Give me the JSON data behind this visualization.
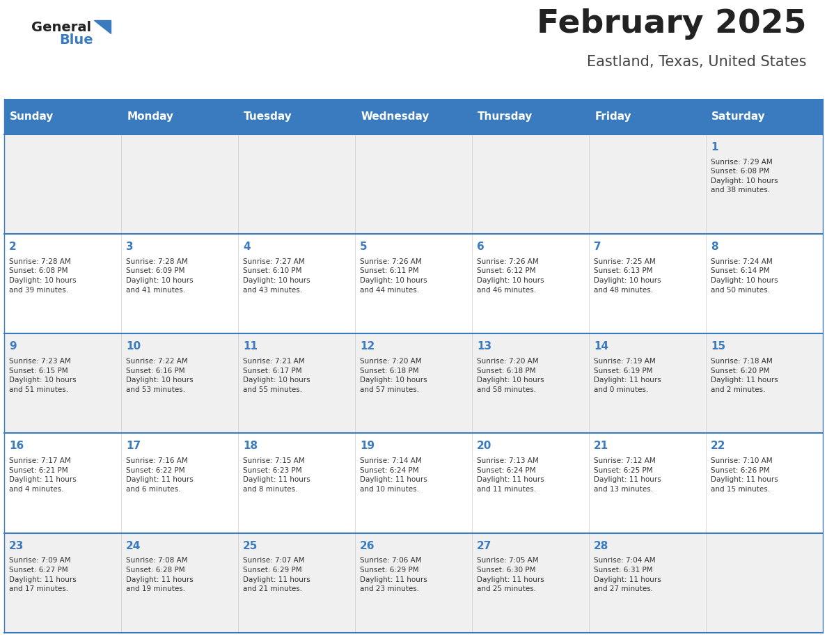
{
  "title": "February 2025",
  "subtitle": "Eastland, Texas, United States",
  "header_bg": "#3a7abf",
  "header_text_color": "#ffffff",
  "day_names": [
    "Sunday",
    "Monday",
    "Tuesday",
    "Wednesday",
    "Thursday",
    "Friday",
    "Saturday"
  ],
  "row1_bg": "#f0f0f0",
  "row2_bg": "#ffffff",
  "divider_color": "#3a7abf",
  "date_color": "#3a7abf",
  "info_color": "#333333",
  "title_color": "#222222",
  "subtitle_color": "#444444",
  "logo_general_color": "#222222",
  "logo_blue_color": "#3a7abf",
  "calendar": [
    [
      {
        "day": null,
        "info": ""
      },
      {
        "day": null,
        "info": ""
      },
      {
        "day": null,
        "info": ""
      },
      {
        "day": null,
        "info": ""
      },
      {
        "day": null,
        "info": ""
      },
      {
        "day": null,
        "info": ""
      },
      {
        "day": 1,
        "info": "Sunrise: 7:29 AM\nSunset: 6:08 PM\nDaylight: 10 hours\nand 38 minutes."
      }
    ],
    [
      {
        "day": 2,
        "info": "Sunrise: 7:28 AM\nSunset: 6:08 PM\nDaylight: 10 hours\nand 39 minutes."
      },
      {
        "day": 3,
        "info": "Sunrise: 7:28 AM\nSunset: 6:09 PM\nDaylight: 10 hours\nand 41 minutes."
      },
      {
        "day": 4,
        "info": "Sunrise: 7:27 AM\nSunset: 6:10 PM\nDaylight: 10 hours\nand 43 minutes."
      },
      {
        "day": 5,
        "info": "Sunrise: 7:26 AM\nSunset: 6:11 PM\nDaylight: 10 hours\nand 44 minutes."
      },
      {
        "day": 6,
        "info": "Sunrise: 7:26 AM\nSunset: 6:12 PM\nDaylight: 10 hours\nand 46 minutes."
      },
      {
        "day": 7,
        "info": "Sunrise: 7:25 AM\nSunset: 6:13 PM\nDaylight: 10 hours\nand 48 minutes."
      },
      {
        "day": 8,
        "info": "Sunrise: 7:24 AM\nSunset: 6:14 PM\nDaylight: 10 hours\nand 50 minutes."
      }
    ],
    [
      {
        "day": 9,
        "info": "Sunrise: 7:23 AM\nSunset: 6:15 PM\nDaylight: 10 hours\nand 51 minutes."
      },
      {
        "day": 10,
        "info": "Sunrise: 7:22 AM\nSunset: 6:16 PM\nDaylight: 10 hours\nand 53 minutes."
      },
      {
        "day": 11,
        "info": "Sunrise: 7:21 AM\nSunset: 6:17 PM\nDaylight: 10 hours\nand 55 minutes."
      },
      {
        "day": 12,
        "info": "Sunrise: 7:20 AM\nSunset: 6:18 PM\nDaylight: 10 hours\nand 57 minutes."
      },
      {
        "day": 13,
        "info": "Sunrise: 7:20 AM\nSunset: 6:18 PM\nDaylight: 10 hours\nand 58 minutes."
      },
      {
        "day": 14,
        "info": "Sunrise: 7:19 AM\nSunset: 6:19 PM\nDaylight: 11 hours\nand 0 minutes."
      },
      {
        "day": 15,
        "info": "Sunrise: 7:18 AM\nSunset: 6:20 PM\nDaylight: 11 hours\nand 2 minutes."
      }
    ],
    [
      {
        "day": 16,
        "info": "Sunrise: 7:17 AM\nSunset: 6:21 PM\nDaylight: 11 hours\nand 4 minutes."
      },
      {
        "day": 17,
        "info": "Sunrise: 7:16 AM\nSunset: 6:22 PM\nDaylight: 11 hours\nand 6 minutes."
      },
      {
        "day": 18,
        "info": "Sunrise: 7:15 AM\nSunset: 6:23 PM\nDaylight: 11 hours\nand 8 minutes."
      },
      {
        "day": 19,
        "info": "Sunrise: 7:14 AM\nSunset: 6:24 PM\nDaylight: 11 hours\nand 10 minutes."
      },
      {
        "day": 20,
        "info": "Sunrise: 7:13 AM\nSunset: 6:24 PM\nDaylight: 11 hours\nand 11 minutes."
      },
      {
        "day": 21,
        "info": "Sunrise: 7:12 AM\nSunset: 6:25 PM\nDaylight: 11 hours\nand 13 minutes."
      },
      {
        "day": 22,
        "info": "Sunrise: 7:10 AM\nSunset: 6:26 PM\nDaylight: 11 hours\nand 15 minutes."
      }
    ],
    [
      {
        "day": 23,
        "info": "Sunrise: 7:09 AM\nSunset: 6:27 PM\nDaylight: 11 hours\nand 17 minutes."
      },
      {
        "day": 24,
        "info": "Sunrise: 7:08 AM\nSunset: 6:28 PM\nDaylight: 11 hours\nand 19 minutes."
      },
      {
        "day": 25,
        "info": "Sunrise: 7:07 AM\nSunset: 6:29 PM\nDaylight: 11 hours\nand 21 minutes."
      },
      {
        "day": 26,
        "info": "Sunrise: 7:06 AM\nSunset: 6:29 PM\nDaylight: 11 hours\nand 23 minutes."
      },
      {
        "day": 27,
        "info": "Sunrise: 7:05 AM\nSunset: 6:30 PM\nDaylight: 11 hours\nand 25 minutes."
      },
      {
        "day": 28,
        "info": "Sunrise: 7:04 AM\nSunset: 6:31 PM\nDaylight: 11 hours\nand 27 minutes."
      },
      {
        "day": null,
        "info": ""
      }
    ]
  ]
}
